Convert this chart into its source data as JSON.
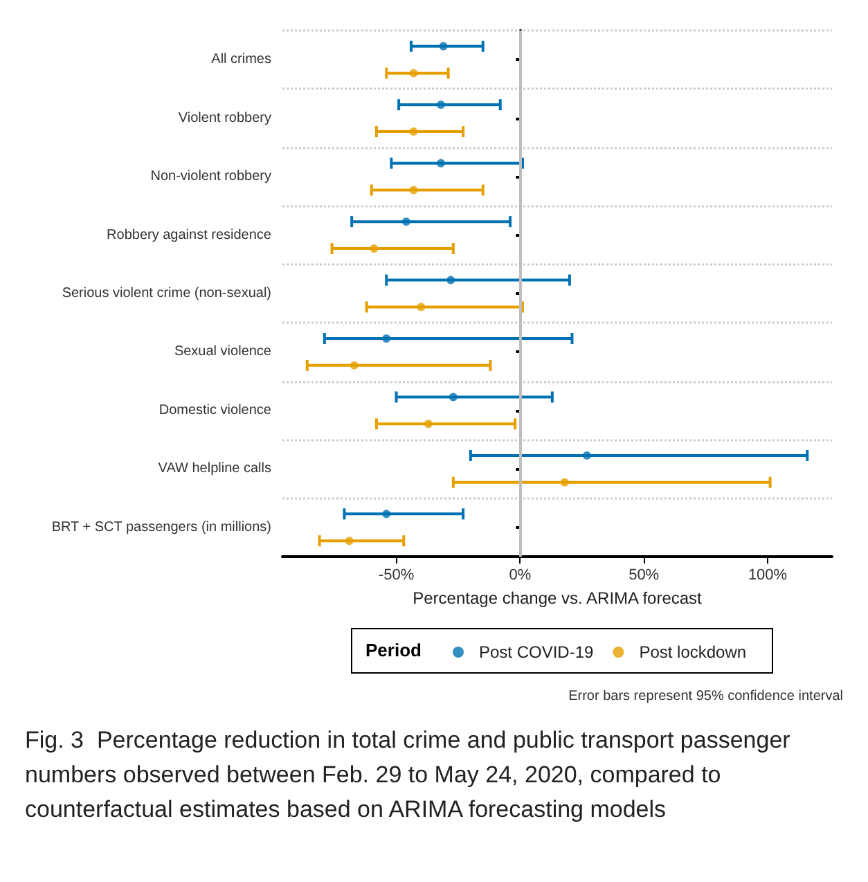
{
  "chart_data": {
    "type": "scatter",
    "orientation": "horizontal",
    "xlabel": "Percentage change vs. ARIMA forecast",
    "legend_title": "Period",
    "legend": "bottom",
    "grid": "y",
    "marker": "circle",
    "categories": [
      "All crimes",
      "Violent robbery",
      "Non-violent robbery",
      "Robbery against residence",
      "Serious violent crime (non-sexual)",
      "Sexual violence",
      "Domestic violence",
      "VAW helpline calls",
      "BRT + SCT passengers (in millions)"
    ],
    "xlim": [
      -96,
      126
    ],
    "xticks": [
      {
        "value": -50,
        "label": "-50%"
      },
      {
        "value": 0,
        "label": "0%"
      },
      {
        "value": 50,
        "label": "50%"
      },
      {
        "value": 100,
        "label": "100%"
      }
    ],
    "series": [
      {
        "name": "Post COVID-19",
        "color": "#0072b2",
        "values": [
          -31,
          -32,
          -32,
          -46,
          -28,
          -54,
          -27,
          27,
          -54
        ],
        "errors": [
          [
            -44,
            -15
          ],
          [
            -49,
            -8
          ],
          [
            -52,
            1
          ],
          [
            -68,
            -4
          ],
          [
            -54,
            20
          ],
          [
            -79,
            21
          ],
          [
            -50,
            13
          ],
          [
            -20,
            116
          ],
          [
            -71,
            -23
          ]
        ]
      },
      {
        "name": "Post lockdown",
        "color": "#e69f00",
        "values": [
          -43,
          -43,
          -43,
          -59,
          -40,
          -67,
          -37,
          18,
          -69
        ],
        "errors": [
          [
            -54,
            -29
          ],
          [
            -58,
            -23
          ],
          [
            -60,
            -15
          ],
          [
            -76,
            -27
          ],
          [
            -62,
            1
          ],
          [
            -86,
            -12
          ],
          [
            -58,
            -2
          ],
          [
            -27,
            101
          ],
          [
            -81,
            -47
          ]
        ]
      }
    ],
    "ref_lines": [
      {
        "axis": "x",
        "value": 0,
        "color": "#bebebe"
      }
    ],
    "annotations": [
      "Error bars represent 95% confidence interval",
      "Fig. 3  Percentage reduction in total crime and public transport passenger numbers observed between Feb. 29 to May 24, 2020, compared to counterfactual estimates based on ARIMA forecasting models"
    ]
  }
}
